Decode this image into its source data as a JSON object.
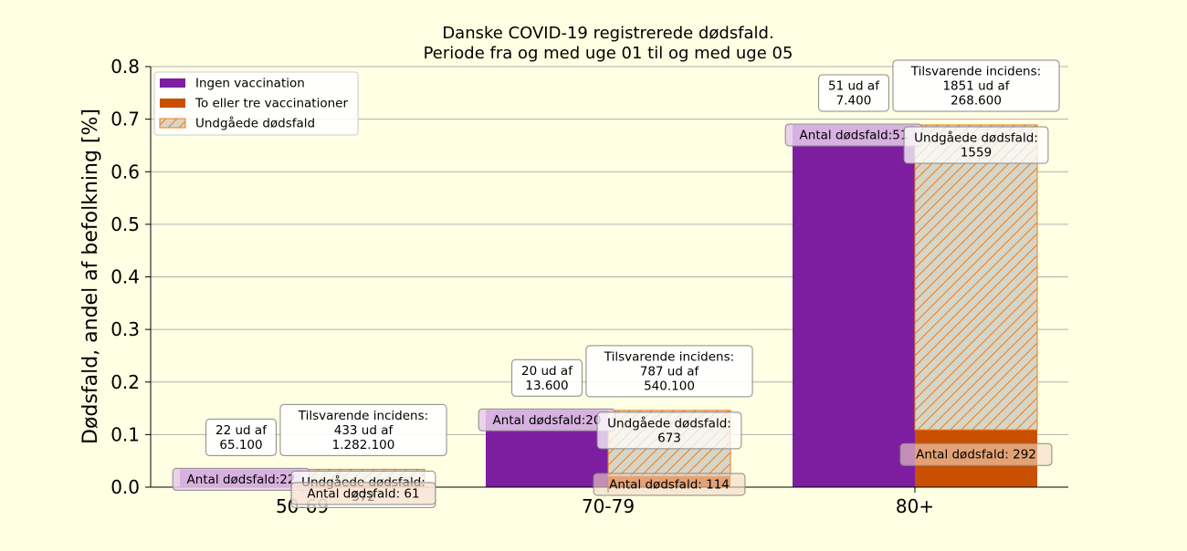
{
  "chart_data": {
    "type": "bar",
    "title": "Danske COVID-19 registrerede dødsfald.",
    "subtitle": "Periode fra og med uge 01 til og med uge 05",
    "xlabel": "",
    "ylabel": "Dødsfald, andel af befolkning [%]",
    "ylim": [
      0,
      0.8
    ],
    "yticks": [
      "0.0",
      "0.1",
      "0.2",
      "0.3",
      "0.4",
      "0.5",
      "0.6",
      "0.7",
      "0.8"
    ],
    "grid": "horizontal",
    "legend_position": "top-left",
    "categories": [
      "50-69",
      "70-79",
      "80+"
    ],
    "series": [
      {
        "name": "Ingen vaccination",
        "color": "#7d1ea0",
        "values": [
          0.034,
          0.147,
          0.689
        ]
      },
      {
        "name": "To eller tre vaccinationer",
        "color": "#c85000",
        "values": [
          0.005,
          0.021,
          0.109
        ]
      },
      {
        "name": "Undgåede dødsfald",
        "color": "#d6d6c8",
        "edge": "#f07c1a",
        "hatch": true,
        "values": [
          0.029,
          0.125,
          0.58
        ]
      }
    ],
    "annotations": [
      {
        "unvacc_ratio": "22 ud af\n65.100",
        "unvacc_deaths": "Antal dødsfald:22",
        "incidence": "Tilsvarende incidens:\n433 ud af\n1.282.100",
        "avoided": "Undgåede dødsfald:\n372",
        "vacc_deaths": "Antal dødsfald: 61"
      },
      {
        "unvacc_ratio": "20 ud af\n13.600",
        "unvacc_deaths": "Antal dødsfald:20",
        "incidence": "Tilsvarende incidens:\n787 ud af\n540.100",
        "avoided": "Undgåede dødsfald:\n673",
        "vacc_deaths": "Antal dødsfald: 114"
      },
      {
        "unvacc_ratio": "51 ud af\n7.400",
        "unvacc_deaths": "Antal dødsfald:51",
        "incidence": "Tilsvarende incidens:\n1851 ud af\n268.600",
        "avoided": "Undgåede dødsfald:\n1559",
        "vacc_deaths": "Antal dødsfald: 292"
      }
    ]
  }
}
